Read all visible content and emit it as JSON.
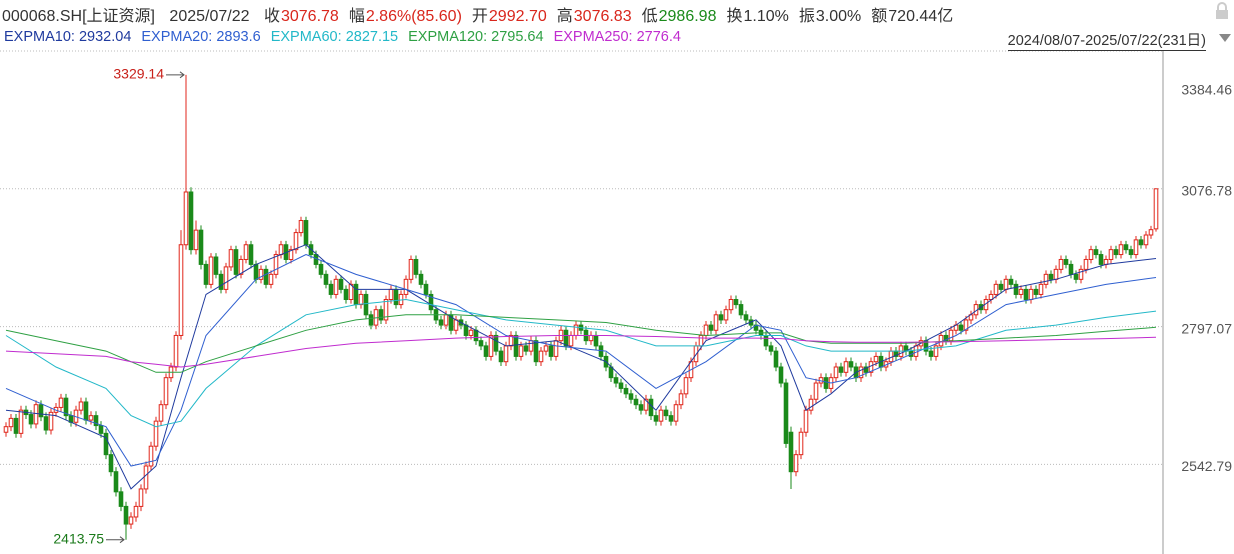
{
  "header": {
    "symbol": "000068.SH[上证资源]",
    "date": "2025/07/22",
    "info": [
      {
        "label": "收",
        "value": "3076.78",
        "color": "#d9261c"
      },
      {
        "label": "幅",
        "value": "2.86%(85.60)",
        "color": "#d9261c"
      },
      {
        "label": "开",
        "value": "2992.70",
        "color": "#d9261c"
      },
      {
        "label": "高",
        "value": "3076.83",
        "color": "#d9261c"
      },
      {
        "label": "低",
        "value": "2986.98",
        "color": "#1a8a1a"
      },
      {
        "label": "换",
        "value": "1.10%",
        "color": "#333333"
      },
      {
        "label": "振",
        "value": "3.00%",
        "color": "#333333"
      },
      {
        "label": "额",
        "value": "720.44亿",
        "color": "#333333"
      }
    ],
    "range": "2024/08/07-2025/07/22(231日)"
  },
  "chart_data": {
    "type": "candlestick",
    "log_scale": true,
    "grid": true,
    "up_color": "#e0261b",
    "down_color": "#1a8a1a",
    "ylim": [
      2390,
      3384.46
    ],
    "yticks": [
      2542.79,
      2797.07,
      3076.78,
      3384.46
    ],
    "open": [
      2600,
      2610,
      2625,
      2598,
      2640,
      2632,
      2615,
      2650,
      2628,
      2604,
      2636,
      2645,
      2662,
      2630,
      2618,
      2640,
      2655,
      2622,
      2630,
      2612,
      2598,
      2560,
      2530,
      2495,
      2470,
      2440,
      2452,
      2470,
      2500,
      2540,
      2575,
      2620,
      2650,
      2700,
      2720,
      2780,
      2960,
      3070,
      2950,
      2990,
      2920,
      2880,
      2935,
      2900,
      2870,
      2915,
      2950,
      2900,
      2930,
      2960,
      2920,
      2890,
      2910,
      2880,
      2900,
      2940,
      2960,
      2930,
      2950,
      2985,
      3010,
      2960,
      2940,
      2920,
      2900,
      2880,
      2860,
      2890,
      2870,
      2850,
      2880,
      2840,
      2860,
      2820,
      2800,
      2830,
      2810,
      2850,
      2870,
      2840,
      2860,
      2890,
      2930,
      2900,
      2880,
      2860,
      2830,
      2810,
      2800,
      2820,
      2790,
      2810,
      2800,
      2780,
      2790,
      2770,
      2760,
      2740,
      2780,
      2750,
      2730,
      2760,
      2780,
      2740,
      2760,
      2750,
      2770,
      2730,
      2750,
      2760,
      2740,
      2770,
      2790,
      2760,
      2780,
      2800,
      2790,
      2770,
      2780,
      2760,
      2740,
      2720,
      2700,
      2690,
      2680,
      2670,
      2660,
      2650,
      2640,
      2660,
      2630,
      2620,
      2640,
      2630,
      2620,
      2650,
      2670,
      2700,
      2730,
      2760,
      2780,
      2800,
      2790,
      2820,
      2810,
      2830,
      2850,
      2840,
      2820,
      2810,
      2800,
      2790,
      2780,
      2760,
      2750,
      2720,
      2690,
      2600,
      2530,
      2560,
      2600,
      2640,
      2660,
      2690,
      2700,
      2680,
      2700,
      2720,
      2710,
      2730,
      2720,
      2700,
      2720,
      2710,
      2730,
      2740,
      2720,
      2730,
      2750,
      2740,
      2760,
      2750,
      2740,
      2760,
      2770,
      2750,
      2740,
      2760,
      2780,
      2770,
      2790,
      2800,
      2790,
      2810,
      2820,
      2840,
      2830,
      2850,
      2860,
      2880,
      2870,
      2890,
      2880,
      2860,
      2870,
      2850,
      2870,
      2860,
      2880,
      2900,
      2890,
      2910,
      2930,
      2920,
      2900,
      2890,
      2910,
      2930,
      2950,
      2940,
      2920,
      2930,
      2950,
      2940,
      2960,
      2950,
      2940,
      2970,
      2960,
      2980,
      2992.7
    ],
    "high": [
      2618,
      2633,
      2633,
      2648,
      2648,
      2640,
      2658,
      2658,
      2636,
      2644,
      2653,
      2670,
      2670,
      2638,
      2648,
      2663,
      2663,
      2638,
      2638,
      2620,
      2606,
      2568,
      2538,
      2503,
      2478,
      2460,
      2478,
      2508,
      2548,
      2583,
      2628,
      2658,
      2708,
      2728,
      2788,
      2990,
      3329.14,
      3080,
      3010,
      3000,
      2928,
      2943,
      2943,
      2908,
      2923,
      2958,
      2958,
      2938,
      2968,
      2968,
      2928,
      2918,
      2918,
      2908,
      2948,
      2968,
      2968,
      2958,
      2993,
      3018,
      3018,
      2968,
      2948,
      2928,
      2908,
      2888,
      2898,
      2898,
      2878,
      2888,
      2888,
      2868,
      2868,
      2828,
      2838,
      2838,
      2858,
      2878,
      2878,
      2868,
      2898,
      2938,
      2938,
      2908,
      2888,
      2868,
      2838,
      2818,
      2828,
      2828,
      2818,
      2818,
      2808,
      2798,
      2798,
      2778,
      2768,
      2788,
      2788,
      2758,
      2768,
      2788,
      2788,
      2768,
      2768,
      2778,
      2778,
      2758,
      2768,
      2768,
      2778,
      2798,
      2798,
      2788,
      2808,
      2808,
      2798,
      2788,
      2788,
      2768,
      2748,
      2728,
      2708,
      2698,
      2688,
      2678,
      2668,
      2658,
      2668,
      2668,
      2638,
      2648,
      2648,
      2638,
      2658,
      2678,
      2708,
      2738,
      2768,
      2788,
      2808,
      2808,
      2828,
      2828,
      2838,
      2858,
      2858,
      2848,
      2828,
      2818,
      2808,
      2798,
      2788,
      2768,
      2758,
      2728,
      2698,
      2610,
      2568,
      2608,
      2648,
      2668,
      2698,
      2708,
      2708,
      2708,
      2728,
      2728,
      2738,
      2738,
      2728,
      2728,
      2728,
      2738,
      2748,
      2748,
      2738,
      2758,
      2758,
      2768,
      2768,
      2758,
      2768,
      2778,
      2778,
      2758,
      2768,
      2788,
      2788,
      2798,
      2808,
      2808,
      2818,
      2828,
      2848,
      2848,
      2858,
      2868,
      2888,
      2888,
      2898,
      2898,
      2888,
      2878,
      2878,
      2878,
      2878,
      2888,
      2908,
      2908,
      2918,
      2938,
      2938,
      2928,
      2908,
      2918,
      2938,
      2958,
      2958,
      2948,
      2938,
      2958,
      2958,
      2968,
      2968,
      2958,
      2978,
      2978,
      2988,
      2999,
      3076.83
    ],
    "low": [
      2592,
      2602,
      2590,
      2590,
      2624,
      2607,
      2607,
      2620,
      2596,
      2596,
      2628,
      2637,
      2622,
      2610,
      2610,
      2632,
      2614,
      2614,
      2604,
      2590,
      2552,
      2522,
      2487,
      2462,
      2413.75,
      2432,
      2444,
      2462,
      2492,
      2532,
      2567,
      2612,
      2642,
      2692,
      2712,
      2772,
      2950,
      2940,
      2940,
      2910,
      2872,
      2872,
      2892,
      2862,
      2862,
      2907,
      2892,
      2892,
      2922,
      2912,
      2882,
      2882,
      2872,
      2872,
      2892,
      2932,
      2922,
      2922,
      2942,
      2977,
      2952,
      2932,
      2912,
      2892,
      2872,
      2852,
      2852,
      2862,
      2842,
      2842,
      2832,
      2832,
      2812,
      2792,
      2792,
      2802,
      2802,
      2842,
      2832,
      2832,
      2852,
      2882,
      2892,
      2872,
      2852,
      2822,
      2802,
      2792,
      2792,
      2782,
      2782,
      2792,
      2772,
      2772,
      2762,
      2752,
      2732,
      2732,
      2742,
      2722,
      2722,
      2752,
      2732,
      2732,
      2742,
      2742,
      2722,
      2722,
      2742,
      2732,
      2732,
      2762,
      2752,
      2752,
      2772,
      2782,
      2762,
      2762,
      2752,
      2732,
      2712,
      2692,
      2682,
      2672,
      2662,
      2652,
      2642,
      2632,
      2632,
      2622,
      2612,
      2612,
      2622,
      2612,
      2612,
      2642,
      2662,
      2692,
      2722,
      2752,
      2772,
      2782,
      2782,
      2802,
      2802,
      2822,
      2832,
      2812,
      2802,
      2792,
      2782,
      2772,
      2752,
      2742,
      2712,
      2682,
      2572,
      2500,
      2522,
      2552,
      2592,
      2632,
      2652,
      2682,
      2672,
      2672,
      2692,
      2702,
      2702,
      2712,
      2692,
      2692,
      2702,
      2702,
      2722,
      2712,
      2712,
      2722,
      2732,
      2732,
      2742,
      2732,
      2732,
      2752,
      2742,
      2732,
      2732,
      2752,
      2762,
      2762,
      2782,
      2782,
      2782,
      2802,
      2812,
      2822,
      2822,
      2842,
      2852,
      2862,
      2862,
      2872,
      2852,
      2852,
      2842,
      2842,
      2852,
      2852,
      2872,
      2882,
      2882,
      2902,
      2912,
      2892,
      2882,
      2882,
      2902,
      2922,
      2932,
      2912,
      2912,
      2922,
      2932,
      2932,
      2942,
      2932,
      2932,
      2952,
      2952,
      2972,
      2986.98
    ],
    "close": [
      2610,
      2625,
      2598,
      2640,
      2632,
      2615,
      2650,
      2628,
      2604,
      2636,
      2645,
      2662,
      2630,
      2618,
      2640,
      2655,
      2622,
      2630,
      2612,
      2598,
      2560,
      2530,
      2495,
      2470,
      2440,
      2452,
      2470,
      2500,
      2540,
      2575,
      2620,
      2650,
      2700,
      2720,
      2780,
      2960,
      3070,
      2950,
      2990,
      2920,
      2880,
      2935,
      2900,
      2870,
      2915,
      2950,
      2900,
      2930,
      2960,
      2920,
      2890,
      2910,
      2880,
      2900,
      2940,
      2960,
      2930,
      2950,
      2985,
      3010,
      2960,
      2940,
      2920,
      2900,
      2880,
      2860,
      2890,
      2870,
      2850,
      2880,
      2840,
      2860,
      2820,
      2800,
      2830,
      2810,
      2850,
      2870,
      2840,
      2860,
      2890,
      2930,
      2900,
      2880,
      2860,
      2830,
      2810,
      2800,
      2820,
      2790,
      2810,
      2800,
      2780,
      2790,
      2770,
      2760,
      2740,
      2780,
      2750,
      2730,
      2760,
      2780,
      2740,
      2760,
      2750,
      2770,
      2730,
      2750,
      2760,
      2740,
      2770,
      2790,
      2760,
      2780,
      2800,
      2790,
      2770,
      2780,
      2760,
      2740,
      2720,
      2700,
      2690,
      2680,
      2670,
      2660,
      2650,
      2640,
      2660,
      2630,
      2620,
      2640,
      2630,
      2620,
      2650,
      2670,
      2700,
      2730,
      2760,
      2780,
      2800,
      2790,
      2820,
      2810,
      2830,
      2850,
      2840,
      2820,
      2810,
      2800,
      2790,
      2780,
      2760,
      2750,
      2720,
      2690,
      2580,
      2530,
      2560,
      2600,
      2640,
      2660,
      2690,
      2700,
      2680,
      2700,
      2720,
      2710,
      2730,
      2720,
      2700,
      2720,
      2710,
      2730,
      2740,
      2720,
      2730,
      2750,
      2740,
      2760,
      2750,
      2740,
      2760,
      2770,
      2750,
      2740,
      2760,
      2780,
      2770,
      2790,
      2800,
      2790,
      2810,
      2820,
      2840,
      2830,
      2850,
      2860,
      2880,
      2870,
      2890,
      2880,
      2860,
      2870,
      2850,
      2870,
      2860,
      2880,
      2900,
      2890,
      2910,
      2930,
      2920,
      2900,
      2890,
      2910,
      2930,
      2950,
      2940,
      2920,
      2930,
      2950,
      2940,
      2960,
      2950,
      2940,
      2970,
      2960,
      2980,
      2991,
      3076.78
    ],
    "series": [
      {
        "name": "EXPMA10",
        "color": "#1f3a9e",
        "x": [
          0,
          10,
          20,
          25,
          30,
          35,
          40,
          50,
          60,
          70,
          80,
          90,
          100,
          110,
          120,
          130,
          140,
          150,
          155,
          160,
          165,
          170,
          180,
          190,
          200,
          210,
          220,
          230
        ],
        "values": [
          2640,
          2630,
          2590,
          2500,
          2540,
          2700,
          2860,
          2920,
          2960,
          2870,
          2870,
          2810,
          2760,
          2770,
          2730,
          2640,
          2770,
          2810,
          2760,
          2640,
          2670,
          2710,
          2750,
          2800,
          2870,
          2890,
          2920,
          2932.04
        ]
      },
      {
        "name": "EXPMA20",
        "color": "#2f5fd0",
        "x": [
          0,
          10,
          20,
          25,
          30,
          35,
          40,
          50,
          60,
          70,
          80,
          90,
          100,
          110,
          120,
          130,
          140,
          150,
          155,
          160,
          165,
          170,
          180,
          190,
          200,
          210,
          220,
          230
        ],
        "values": [
          2680,
          2640,
          2610,
          2540,
          2550,
          2640,
          2780,
          2890,
          2940,
          2900,
          2870,
          2840,
          2780,
          2760,
          2750,
          2680,
          2730,
          2800,
          2790,
          2700,
          2690,
          2700,
          2740,
          2780,
          2840,
          2860,
          2880,
          2893.6
        ]
      },
      {
        "name": "EXPMA60",
        "color": "#22b8c8",
        "x": [
          0,
          10,
          20,
          25,
          30,
          35,
          40,
          50,
          60,
          70,
          80,
          90,
          100,
          110,
          120,
          130,
          140,
          150,
          155,
          160,
          165,
          170,
          180,
          190,
          200,
          210,
          220,
          230
        ],
        "values": [
          2780,
          2720,
          2680,
          2630,
          2610,
          2620,
          2680,
          2760,
          2820,
          2840,
          2850,
          2830,
          2810,
          2800,
          2790,
          2760,
          2760,
          2780,
          2780,
          2760,
          2750,
          2750,
          2750,
          2760,
          2790,
          2800,
          2815,
          2827.15
        ]
      },
      {
        "name": "EXPMA120",
        "color": "#2ea043",
        "x": [
          0,
          10,
          20,
          25,
          30,
          35,
          40,
          50,
          60,
          70,
          80,
          90,
          100,
          110,
          120,
          130,
          140,
          150,
          155,
          160,
          165,
          170,
          180,
          190,
          200,
          210,
          220,
          230
        ],
        "values": [
          2790,
          2770,
          2750,
          2730,
          2710,
          2710,
          2730,
          2760,
          2790,
          2810,
          2820,
          2820,
          2815,
          2810,
          2805,
          2790,
          2780,
          2785,
          2785,
          2770,
          2765,
          2765,
          2765,
          2770,
          2775,
          2780,
          2788,
          2795.64
        ]
      },
      {
        "name": "EXPMA250",
        "color": "#c02ccf",
        "x": [
          0,
          10,
          20,
          25,
          30,
          35,
          40,
          50,
          60,
          70,
          80,
          90,
          100,
          110,
          120,
          130,
          140,
          150,
          155,
          160,
          165,
          170,
          180,
          190,
          200,
          210,
          220,
          230
        ],
        "values": [
          2750,
          2745,
          2740,
          2730,
          2725,
          2720,
          2725,
          2740,
          2755,
          2765,
          2770,
          2775,
          2778,
          2780,
          2780,
          2778,
          2775,
          2775,
          2774,
          2770,
          2768,
          2767,
          2767,
          2768,
          2770,
          2772,
          2774,
          2776.4
        ]
      }
    ]
  }
}
